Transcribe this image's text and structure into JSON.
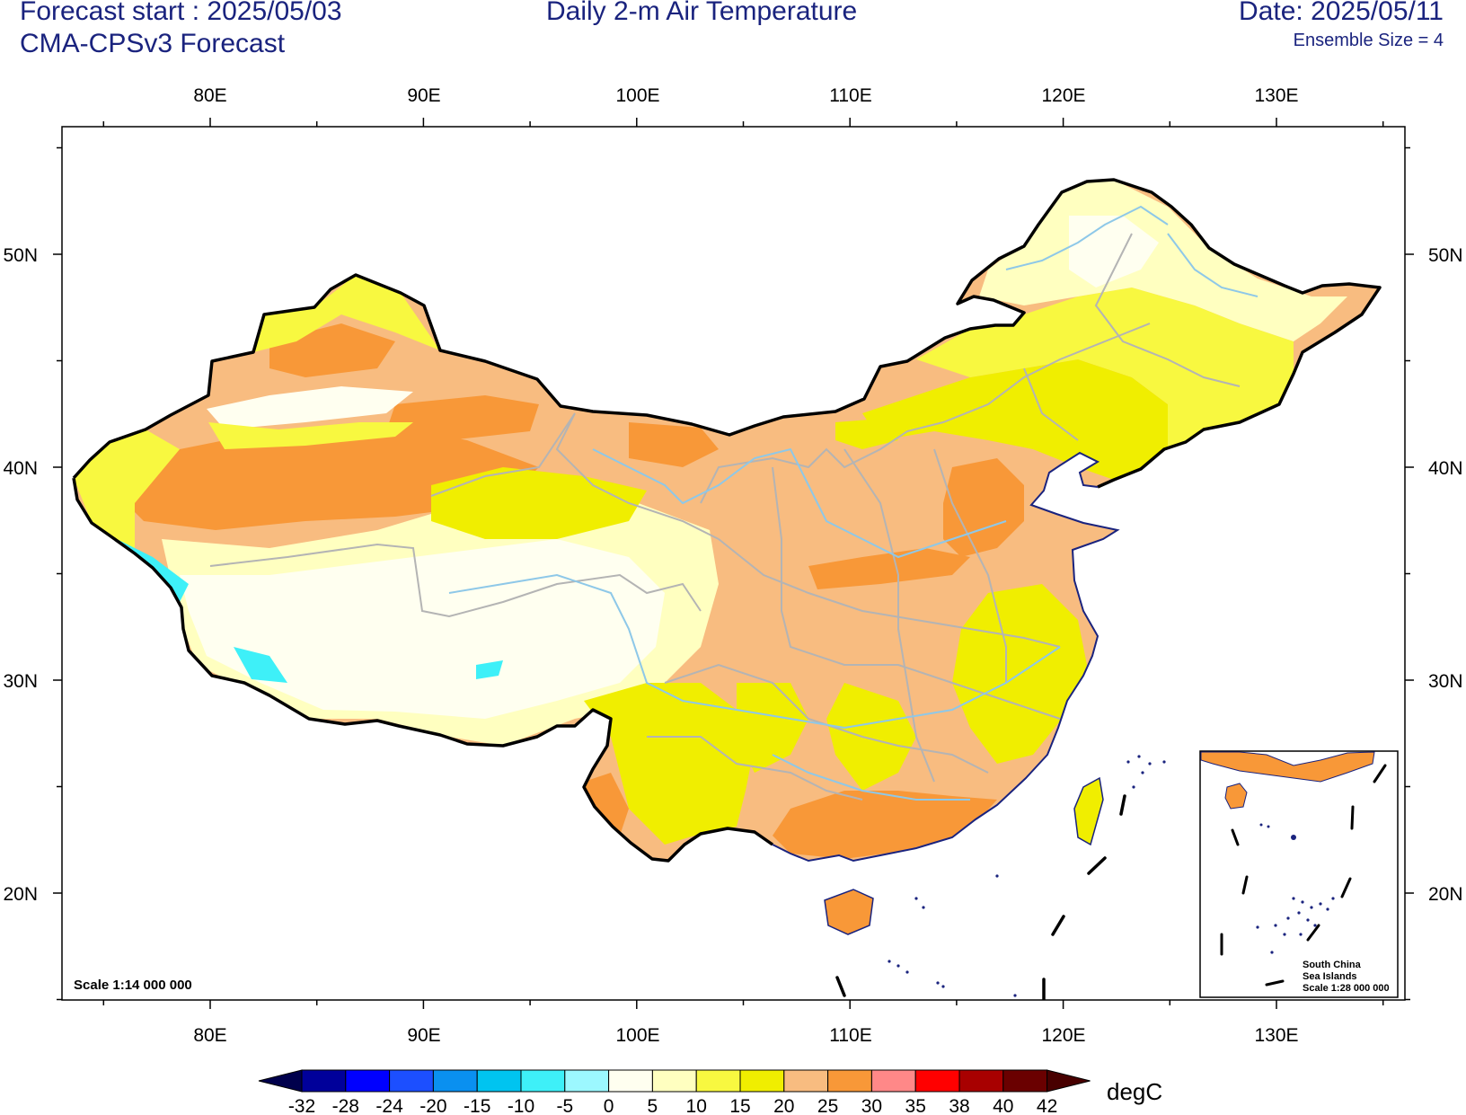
{
  "header": {
    "forecast_start": "Forecast start : 2025/05/03",
    "model": "CMA-CPSv3 Forecast",
    "title": "Daily 2-m Air Temperature",
    "date": "Date: 2025/05/11",
    "ensemble": "Ensemble Size = 4"
  },
  "axes": {
    "lon_labels": [
      "80E",
      "90E",
      "100E",
      "110E",
      "120E",
      "130E"
    ],
    "lat_labels": [
      "50N",
      "40N",
      "30N",
      "20N"
    ]
  },
  "map": {
    "scale_note": "Scale 1:14 000 000",
    "inset_lines": [
      "South China",
      "Sea Islands",
      "Scale 1:28 000 000"
    ]
  },
  "colorbar": {
    "unit": "degC",
    "levels": [
      "-32",
      "-28",
      "-24",
      "-20",
      "-15",
      "-10",
      "-5",
      "0",
      "5",
      "10",
      "15",
      "20",
      "25",
      "30",
      "35",
      "38",
      "40",
      "42"
    ],
    "colors": [
      "#00004c",
      "#00009a",
      "#0000ff",
      "#1c4fff",
      "#0a90f0",
      "#00c4f0",
      "#3ef0f8",
      "#9cf8ff",
      "#fffff0",
      "#ffffc0",
      "#f8f840",
      "#f0ee00",
      "#f8bc80",
      "#f89838",
      "#ff8888",
      "#ff0000",
      "#a80000",
      "#6a0000",
      "#480000"
    ]
  }
}
